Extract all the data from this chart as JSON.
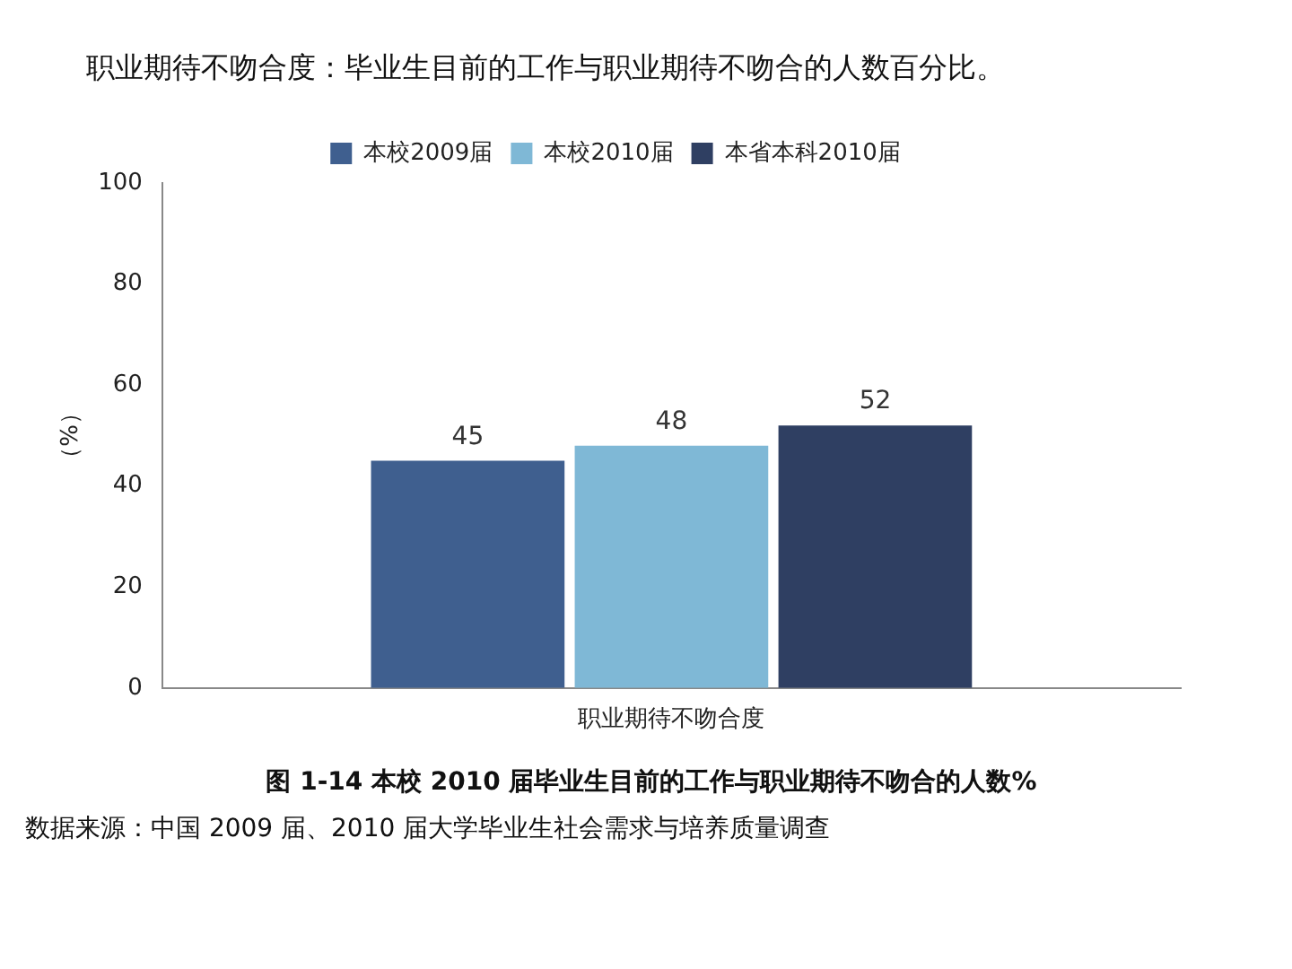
{
  "chart_data": {
    "type": "bar",
    "title": "职业期待不吻合度：毕业生目前的工作与职业期待不吻合的人数百分比。",
    "ylabel": "（%）",
    "categories": [
      "职业期待不吻合度"
    ],
    "series": [
      {
        "name": "本校2009届",
        "color": "#3f5f8f",
        "values": [
          45
        ]
      },
      {
        "name": "本校2010届",
        "color": "#7fb8d6",
        "values": [
          48
        ]
      },
      {
        "name": "本省本科2010届",
        "color": "#2f3f62",
        "values": [
          52
        ]
      }
    ],
    "ylim": [
      0,
      100
    ],
    "yticks": [
      0,
      20,
      40,
      60,
      80,
      100
    ],
    "grid": false,
    "legend": "top",
    "data_labels": true,
    "annotations": [
      "图 1-14   本校 2010 届毕业生目前的工作与职业期待不吻合的人数%",
      "数据来源：中国 2009 届、2010 届大学毕业生社会需求与培养质量调查"
    ]
  }
}
